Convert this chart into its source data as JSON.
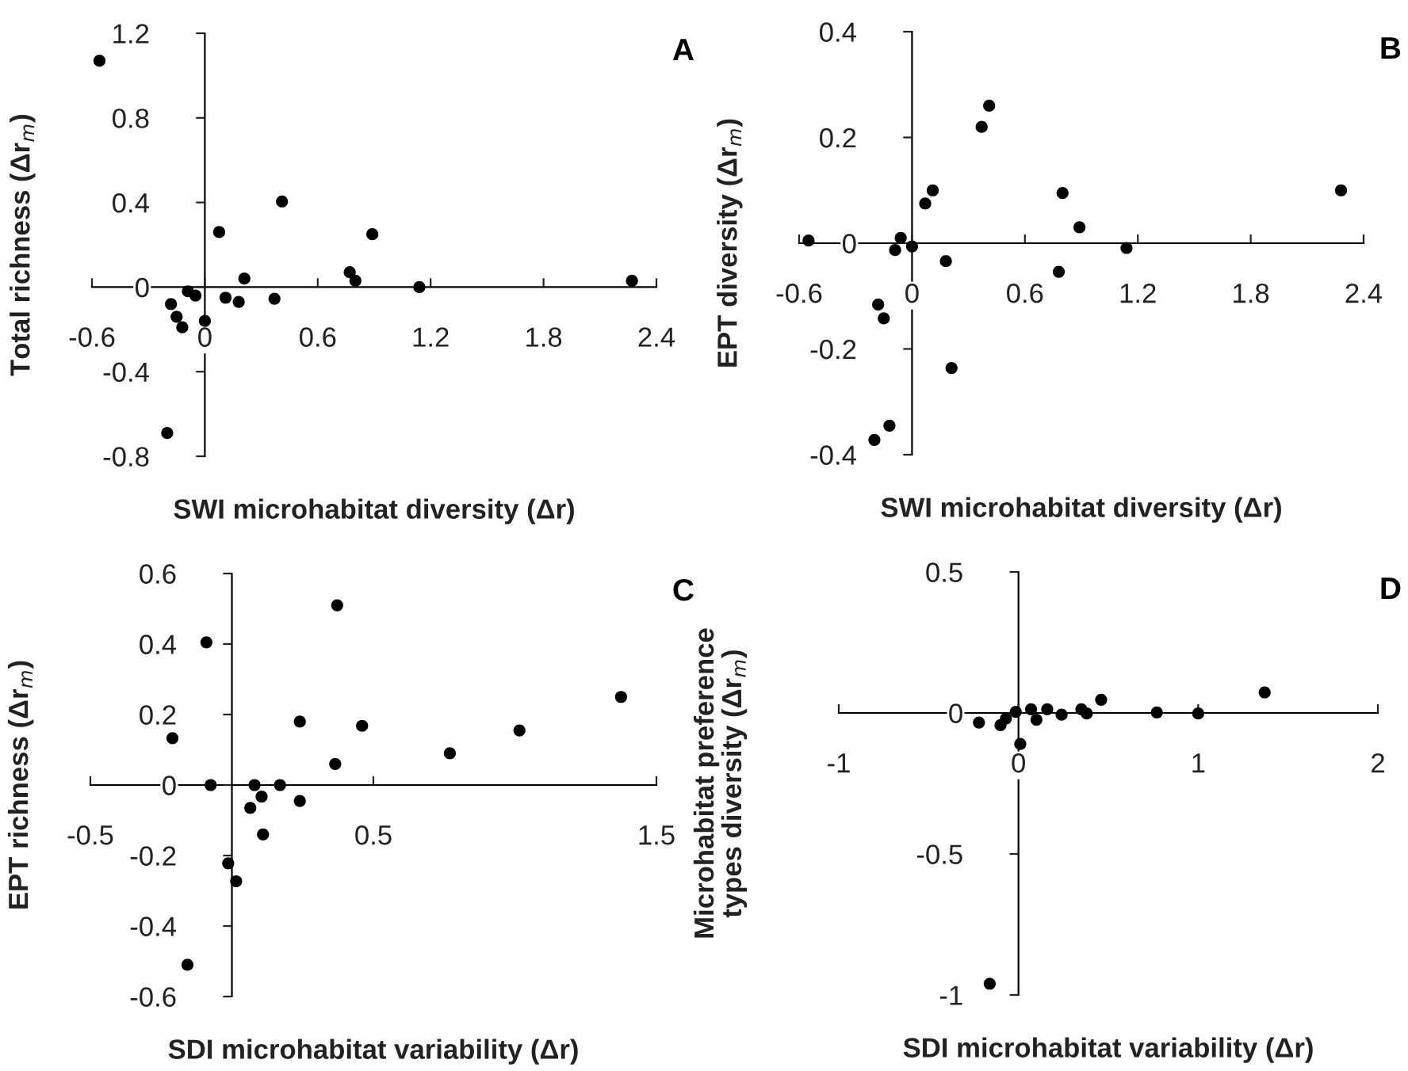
{
  "chart_data": [
    {
      "type": "scatter",
      "title": "A",
      "xlabel": "SWI microhabitat diversity (Δr)",
      "ylabel": "Total richness (Δr$_{m}$)",
      "marker": "circle",
      "grid": false,
      "legend": false,
      "xlim": [
        -0.6,
        2.4
      ],
      "ylim": [
        -0.8,
        1.2
      ],
      "xticks": [
        -0.6,
        0,
        0.6,
        1.2,
        1.8,
        2.4
      ],
      "yticks": [
        -0.8,
        -0.4,
        0,
        0.4,
        0.8,
        1.2
      ],
      "series": [
        {
          "color": "#000000",
          "x": [
            -0.56,
            0.076,
            0.41,
            0.89,
            0.21,
            0.77,
            0.8,
            1.14,
            2.27,
            -0.18,
            -0.15,
            -0.12,
            -0.09,
            -0.05,
            0.0,
            0.11,
            0.18,
            0.37,
            -0.2
          ],
          "values": [
            1.07,
            0.26,
            0.405,
            0.25,
            0.04,
            0.07,
            0.03,
            0.0,
            0.03,
            -0.08,
            -0.14,
            -0.19,
            -0.02,
            -0.04,
            -0.16,
            -0.05,
            -0.07,
            -0.055,
            -0.69
          ]
        }
      ]
    },
    {
      "type": "scatter",
      "title": "B",
      "xlabel": "SWI microhabitat diversity (Δr)",
      "ylabel": "EPT diversity (Δr$_{m}$)",
      "marker": "circle",
      "grid": false,
      "legend": false,
      "xlim": [
        -0.6,
        2.4
      ],
      "ylim": [
        -0.4,
        0.4
      ],
      "xticks": [
        -0.6,
        0,
        0.6,
        1.2,
        1.8,
        2.4
      ],
      "yticks": [
        -0.4,
        -0.2,
        0,
        0.2,
        0.4
      ],
      "series": [
        {
          "color": "#000000",
          "x": [
            -0.55,
            0.41,
            0.37,
            0.11,
            0.07,
            0.8,
            2.28,
            0.89,
            -0.06,
            -0.09,
            0.0,
            0.18,
            1.14,
            0.78,
            -0.18,
            -0.15,
            0.21,
            -0.12,
            -0.2
          ],
          "values": [
            0.005,
            0.26,
            0.22,
            0.1,
            0.075,
            0.095,
            0.1,
            0.03,
            0.01,
            -0.013,
            -0.006,
            -0.034,
            -0.009,
            -0.054,
            -0.116,
            -0.142,
            -0.236,
            -0.345,
            -0.372
          ]
        }
      ]
    },
    {
      "type": "scatter",
      "title": "C",
      "xlabel": "SDI microhabitat variability (Δr)",
      "ylabel": "EPT richness (Δr$_{m}$)",
      "marker": "circle",
      "grid": false,
      "legend": false,
      "xlim": [
        -0.5,
        1.5
      ],
      "ylim": [
        -0.6,
        0.6
      ],
      "xticks": [
        -0.5,
        0.5,
        1.5
      ],
      "yticks": [
        -0.6,
        -0.4,
        -0.2,
        0,
        0.2,
        0.4,
        0.6
      ],
      "series": [
        {
          "color": "#000000",
          "x": [
            0.372,
            -0.09,
            -0.21,
            0.24,
            0.46,
            1.375,
            1.016,
            0.77,
            0.365,
            -0.075,
            0.08,
            0.17,
            0.105,
            0.065,
            0.24,
            0.11,
            -0.013,
            0.015,
            -0.157
          ],
          "values": [
            0.51,
            0.405,
            0.133,
            0.18,
            0.168,
            0.25,
            0.155,
            0.09,
            0.06,
            0.0,
            0.0,
            0.0,
            -0.033,
            -0.065,
            -0.045,
            -0.14,
            -0.222,
            -0.273,
            -0.51
          ]
        }
      ]
    },
    {
      "type": "scatter",
      "title": "D",
      "xlabel": "SDI microhabitat variability (Δr)",
      "ylabel": "Microhabitat preference\ntypes diversity (Δr$_{m}$)",
      "marker": "circle",
      "grid": false,
      "legend": false,
      "xlim": [
        -1,
        2
      ],
      "ylim": [
        -1,
        0.5
      ],
      "xticks": [
        -1,
        0,
        1,
        2
      ],
      "yticks": [
        -1,
        -0.5,
        0,
        0.5
      ],
      "series": [
        {
          "color": "#000000",
          "x": [
            -0.22,
            -0.1,
            -0.07,
            -0.015,
            0.01,
            0.07,
            0.1,
            0.16,
            0.24,
            0.35,
            0.38,
            0.46,
            0.77,
            1.0,
            1.37,
            -0.16
          ],
          "values": [
            -0.034,
            -0.043,
            -0.02,
            0.004,
            -0.11,
            0.013,
            -0.024,
            0.013,
            -0.006,
            0.013,
            -0.002,
            0.047,
            0.002,
            -0.002,
            0.073,
            -0.96
          ]
        }
      ]
    }
  ]
}
